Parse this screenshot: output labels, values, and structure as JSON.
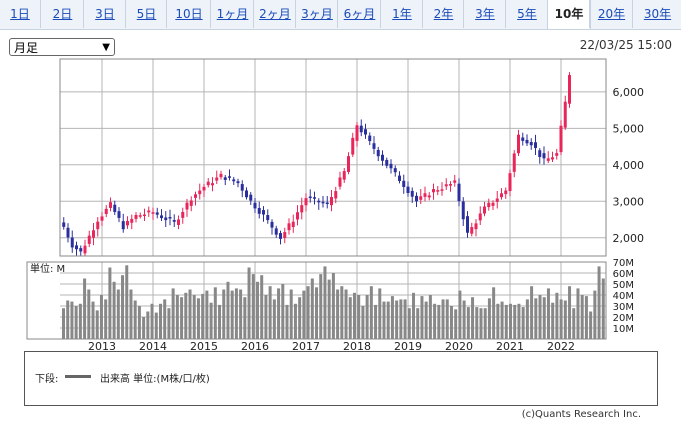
{
  "tabs": [
    {
      "label": "1日"
    },
    {
      "label": "2日"
    },
    {
      "label": "3日"
    },
    {
      "label": "5日"
    },
    {
      "label": "10日"
    },
    {
      "label": "1ヶ月"
    },
    {
      "label": "2ヶ月"
    },
    {
      "label": "3ヶ月"
    },
    {
      "label": "6ヶ月"
    },
    {
      "label": "1年"
    },
    {
      "label": "2年"
    },
    {
      "label": "3年"
    },
    {
      "label": "5年"
    },
    {
      "label": "10年"
    },
    {
      "label": "20年"
    },
    {
      "label": "30年"
    }
  ],
  "active_tab": "10年",
  "period_select": {
    "value": "月足"
  },
  "timestamp": "22/03/25 15:00",
  "legend": {
    "label": "下段:",
    "text": "出来高 単位:(M株/口/枚)"
  },
  "credit": "(c)Quants Research Inc.",
  "colors": {
    "up": "#e8265a",
    "down": "#2a2f9e",
    "volume": "#888888",
    "grid": "#b5b5b5"
  },
  "chart_data": [
    {
      "type": "candlestick",
      "title": "",
      "x_tick_labels": [
        "2013",
        "2014",
        "2015",
        "2016",
        "2017",
        "2018",
        "2019",
        "2020",
        "2021",
        "2022"
      ],
      "y_tick_labels": [
        "2,000",
        "3,000",
        "4,000",
        "5,000",
        "6,000"
      ],
      "ylim": [
        1500,
        6900
      ],
      "keypoints": [
        {
          "date": "2012-04",
          "close": 2300
        },
        {
          "date": "2012-06",
          "close": 1800
        },
        {
          "date": "2012-08",
          "close": 1600
        },
        {
          "date": "2012-12",
          "close": 2500
        },
        {
          "date": "2013-03",
          "close": 2900
        },
        {
          "date": "2013-06",
          "close": 2300
        },
        {
          "date": "2013-09",
          "close": 2600
        },
        {
          "date": "2014-01",
          "close": 2700
        },
        {
          "date": "2014-06",
          "close": 2400
        },
        {
          "date": "2014-10",
          "close": 3100
        },
        {
          "date": "2015-01",
          "close": 3400
        },
        {
          "date": "2015-05",
          "close": 3700
        },
        {
          "date": "2015-09",
          "close": 3500
        },
        {
          "date": "2015-12",
          "close": 3000
        },
        {
          "date": "2016-03",
          "close": 2600
        },
        {
          "date": "2016-07",
          "close": 2000
        },
        {
          "date": "2016-10",
          "close": 2500
        },
        {
          "date": "2017-01",
          "close": 3100
        },
        {
          "date": "2017-06",
          "close": 2900
        },
        {
          "date": "2017-10",
          "close": 3800
        },
        {
          "date": "2018-01",
          "close": 5100
        },
        {
          "date": "2018-04",
          "close": 4600
        },
        {
          "date": "2018-08",
          "close": 4000
        },
        {
          "date": "2018-11",
          "close": 3600
        },
        {
          "date": "2019-03",
          "close": 3000
        },
        {
          "date": "2019-07",
          "close": 3300
        },
        {
          "date": "2019-12",
          "close": 3500
        },
        {
          "date": "2020-03",
          "close": 2100
        },
        {
          "date": "2020-07",
          "close": 2800
        },
        {
          "date": "2020-12",
          "close": 3300
        },
        {
          "date": "2021-03",
          "close": 4800
        },
        {
          "date": "2021-06",
          "close": 4600
        },
        {
          "date": "2021-09",
          "close": 4100
        },
        {
          "date": "2021-12",
          "close": 4300
        },
        {
          "date": "2022-02",
          "close": 5700
        },
        {
          "date": "2022-03",
          "close": 6500
        }
      ]
    },
    {
      "type": "bar",
      "title": "",
      "ylabel": "単位: M",
      "y_tick_labels": [
        "10M",
        "20M",
        "30M",
        "40M",
        "50M",
        "60M",
        "70M"
      ],
      "ylim": [
        0,
        70
      ],
      "values": [
        28,
        35,
        34,
        30,
        32,
        55,
        45,
        34,
        26,
        40,
        36,
        65,
        52,
        45,
        58,
        67,
        45,
        35,
        30,
        20,
        25,
        32,
        24,
        32,
        36,
        28,
        46,
        40,
        38,
        42,
        45,
        40,
        37,
        41,
        44,
        33,
        47,
        31,
        45,
        52,
        44,
        46,
        45,
        38,
        65,
        59,
        52,
        58,
        40,
        48,
        36,
        46,
        50,
        31,
        45,
        32,
        38,
        44,
        48,
        55,
        47,
        59,
        66,
        54,
        60,
        45,
        48,
        45,
        38,
        42,
        40,
        30,
        40,
        48,
        31,
        46,
        34,
        34,
        39,
        35,
        36,
        36,
        28,
        42,
        28,
        39,
        34,
        40,
        32,
        31,
        36,
        36,
        30,
        27,
        44,
        35,
        29,
        38,
        29,
        28,
        28,
        37,
        47,
        32,
        34,
        31,
        32,
        31,
        32,
        29,
        36,
        48,
        37,
        40,
        38,
        46,
        33,
        42,
        36,
        35,
        48,
        28,
        46,
        40,
        39,
        25,
        44,
        66,
        55
      ]
    }
  ]
}
